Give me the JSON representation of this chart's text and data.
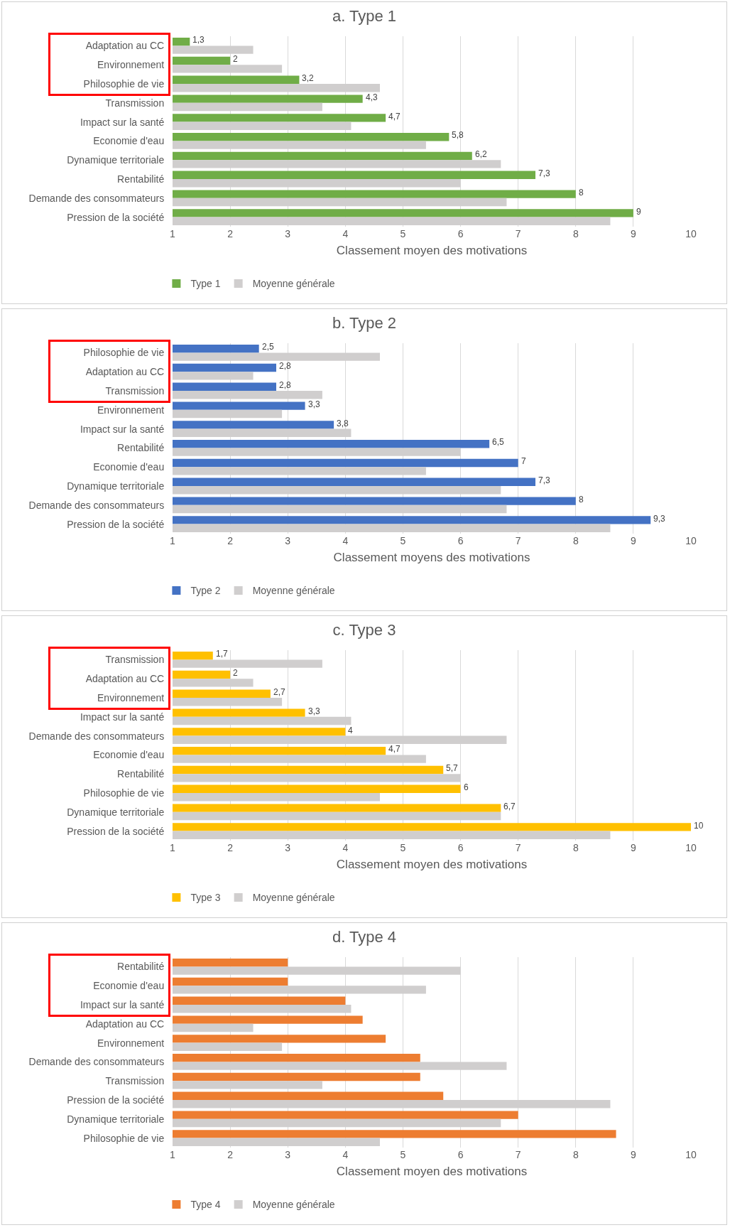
{
  "chart_data": [
    {
      "type": "bar",
      "orientation": "horizontal",
      "title": "a. Type 1",
      "xlabel": "Classement moyen des motivations",
      "categories": [
        "Adaptation au CC",
        "Environnement",
        "Philosophie de vie",
        "Transmission",
        "Impact sur la santé",
        "Economie d'eau",
        "Dynamique territoriale",
        "Rentabilité",
        "Demande des consommateurs",
        "Pression de la société"
      ],
      "series": [
        {
          "name": "Type 1",
          "color": "#70ad47",
          "values": [
            1.3,
            2,
            3.2,
            4.3,
            4.7,
            5.8,
            6.2,
            7.3,
            8,
            9
          ],
          "value_labels": [
            "1,3",
            "2",
            "3,2",
            "4,3",
            "4,7",
            "5,8",
            "6,2",
            "7,3",
            "8",
            "9"
          ]
        },
        {
          "name": "Moyenne générale",
          "color": "#d0cece",
          "values": [
            2.4,
            2.9,
            4.6,
            3.6,
            4.1,
            5.4,
            6.7,
            6.0,
            6.8,
            8.6
          ]
        }
      ],
      "xlim": [
        1,
        10
      ],
      "xticks": [
        1,
        2,
        3,
        4,
        5,
        6,
        7,
        8,
        9,
        10
      ],
      "grid": "x",
      "legend": "bottom"
    },
    {
      "type": "bar",
      "orientation": "horizontal",
      "title": "b. Type 2",
      "xlabel": "Classement moyens des motivations",
      "categories": [
        "Philosophie de vie",
        "Adaptation au CC",
        "Transmission",
        "Environnement",
        "Impact sur la santé",
        "Rentabilité",
        "Economie d'eau",
        "Dynamique territoriale",
        "Demande des consommateurs",
        "Pression de la société"
      ],
      "series": [
        {
          "name": "Type 2",
          "color": "#4472c4",
          "values": [
            2.5,
            2.8,
            2.8,
            3.3,
            3.8,
            6.5,
            7,
            7.3,
            8,
            9.3
          ],
          "value_labels": [
            "2,5",
            "2,8",
            "2,8",
            "3,3",
            "3,8",
            "6,5",
            "7",
            "7,3",
            "8",
            "9,3"
          ]
        },
        {
          "name": "Moyenne générale",
          "color": "#d0cece",
          "values": [
            4.6,
            2.4,
            3.6,
            2.9,
            4.1,
            6.0,
            5.4,
            6.7,
            6.8,
            8.6
          ]
        }
      ],
      "xlim": [
        1,
        10
      ],
      "xticks": [
        1,
        2,
        3,
        4,
        5,
        6,
        7,
        8,
        9,
        10
      ],
      "grid": "x",
      "legend": "bottom"
    },
    {
      "type": "bar",
      "orientation": "horizontal",
      "title": "c. Type 3",
      "xlabel": "Classement moyen des motivations",
      "categories": [
        "Transmission",
        "Adaptation au CC",
        "Environnement",
        "Impact sur la santé",
        "Demande des consommateurs",
        "Economie d'eau",
        "Rentabilité",
        "Philosophie de vie",
        "Dynamique territoriale",
        "Pression de la société"
      ],
      "series": [
        {
          "name": "Type 3",
          "color": "#ffc000",
          "values": [
            1.7,
            2,
            2.7,
            3.3,
            4,
            4.7,
            5.7,
            6,
            6.7,
            10
          ],
          "value_labels": [
            "1,7",
            "2",
            "2,7",
            "3,3",
            "4",
            "4,7",
            "5,7",
            "6",
            "6,7",
            "10"
          ]
        },
        {
          "name": "Moyenne générale",
          "color": "#d0cece",
          "values": [
            3.6,
            2.4,
            2.9,
            4.1,
            6.8,
            5.4,
            6.0,
            4.6,
            6.7,
            8.6
          ]
        }
      ],
      "xlim": [
        1,
        10
      ],
      "xticks": [
        1,
        2,
        3,
        4,
        5,
        6,
        7,
        8,
        9,
        10
      ],
      "grid": "x",
      "legend": "bottom"
    },
    {
      "type": "bar",
      "orientation": "horizontal",
      "title": "d. Type 4",
      "xlabel": "Classement moyen des motivations",
      "categories": [
        "Rentabilité",
        "Economie d'eau",
        "Impact sur la santé",
        "Adaptation au CC",
        "Environnement",
        "Demande des consommateurs",
        "Transmission",
        "Pression de la société",
        "Dynamique territoriale",
        "Philosophie de vie"
      ],
      "series": [
        {
          "name": "Type 4",
          "color": "#ed7d31",
          "values": [
            3,
            3,
            4,
            4.3,
            4.7,
            5.3,
            5.3,
            5.7,
            7,
            8.7
          ]
        },
        {
          "name": "Moyenne générale",
          "color": "#d0cece",
          "values": [
            6.0,
            5.4,
            4.1,
            2.4,
            2.9,
            6.8,
            3.6,
            8.6,
            6.7,
            4.6
          ]
        }
      ],
      "xlim": [
        1,
        10
      ],
      "xticks": [
        1,
        2,
        3,
        4,
        5,
        6,
        7,
        8,
        9,
        10
      ],
      "grid": "x",
      "legend": "bottom"
    }
  ]
}
